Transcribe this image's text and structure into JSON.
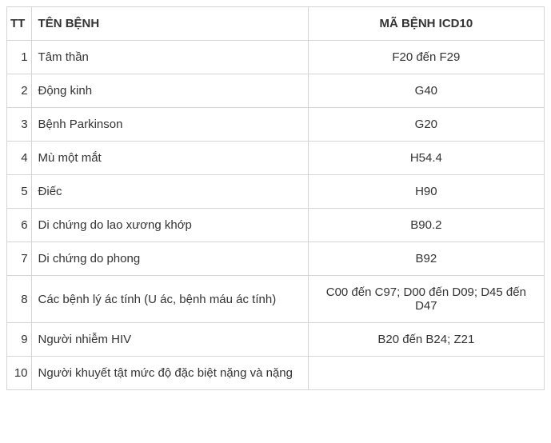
{
  "table": {
    "columns": [
      "TT",
      "TÊN BỆNH",
      "MÃ BỆNH ICD10"
    ],
    "rows": [
      {
        "tt": "1",
        "name": "Tâm thần",
        "code": "F20 đến F29"
      },
      {
        "tt": "2",
        "name": "Động kinh",
        "code": "G40"
      },
      {
        "tt": "3",
        "name": "Bệnh Parkinson",
        "code": "G20"
      },
      {
        "tt": "4",
        "name": "Mù một mắt",
        "code": "H54.4"
      },
      {
        "tt": "5",
        "name": "Điếc",
        "code": "H90"
      },
      {
        "tt": "6",
        "name": "Di chứng do lao xương khớp",
        "code": "B90.2"
      },
      {
        "tt": "7",
        "name": "Di chứng do phong",
        "code": "B92"
      },
      {
        "tt": "8",
        "name": "Các bệnh lý ác tính (U ác, bệnh máu ác tính)",
        "code": "C00 đến C97; D00 đến D09; D45 đến D47"
      },
      {
        "tt": "9",
        "name": "Người nhiễm HIV",
        "code": "B20 đến B24; Z21"
      },
      {
        "tt": "10",
        "name": "Người khuyết tật mức độ đặc biệt nặng và nặng",
        "code": ""
      }
    ],
    "styling": {
      "border_color": "#d4d4d4",
      "text_color": "#333333",
      "background_color": "#ffffff",
      "font_size": 15,
      "header_font_weight": "bold",
      "cell_padding": "12px 8px",
      "col_widths": {
        "tt": 30,
        "name": 340,
        "code": 290
      },
      "alignments": {
        "tt": "right",
        "name": "left",
        "code": "center",
        "header": "center"
      }
    }
  }
}
